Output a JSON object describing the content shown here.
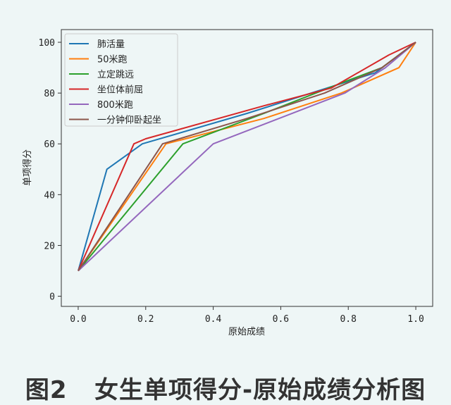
{
  "caption": "图2   女生单项得分-原始成绩分析图",
  "chart_data": {
    "type": "line",
    "xlabel": "原始成绩",
    "ylabel": "单项得分",
    "xlim": [
      -0.05,
      1.05
    ],
    "ylim": [
      -4,
      105
    ],
    "xticks": [
      0.0,
      0.2,
      0.4,
      0.6,
      0.8,
      1.0
    ],
    "xtick_labels": [
      "0.0",
      "0.2",
      "0.4",
      "0.6",
      "0.8",
      "1.0"
    ],
    "yticks": [
      0,
      20,
      40,
      60,
      80,
      100
    ],
    "ytick_labels": [
      "0",
      "20",
      "40",
      "60",
      "80",
      "100"
    ],
    "grid": false,
    "legend_position": "top-left",
    "series": [
      {
        "name": "肺活量",
        "color": "#1f77b4",
        "x": [
          0.0,
          0.085,
          0.19,
          0.5,
          0.88,
          1.0
        ],
        "y": [
          10,
          50,
          60,
          72,
          88,
          100
        ]
      },
      {
        "name": "50米跑",
        "color": "#ff7f0e",
        "x": [
          0.0,
          0.26,
          0.55,
          0.78,
          0.95,
          1.0
        ],
        "y": [
          10,
          60,
          70,
          80,
          90,
          100
        ]
      },
      {
        "name": "立定跳远",
        "color": "#2ca02c",
        "x": [
          0.0,
          0.31,
          0.55,
          0.8,
          0.9,
          1.0
        ],
        "y": [
          10,
          60,
          72,
          85,
          90,
          100
        ]
      },
      {
        "name": "坐位体前屈",
        "color": "#d62728",
        "x": [
          0.0,
          0.165,
          0.2,
          0.55,
          0.75,
          0.92,
          1.0
        ],
        "y": [
          10,
          60,
          62,
          75,
          82,
          95,
          100
        ]
      },
      {
        "name": "800米跑",
        "color": "#9467bd",
        "x": [
          0.0,
          0.4,
          0.79,
          0.91,
          1.0
        ],
        "y": [
          10,
          60,
          80,
          90,
          100
        ]
      },
      {
        "name": "一分钟仰卧起坐",
        "color": "#8c564b",
        "x": [
          0.0,
          0.25,
          0.5,
          0.73,
          0.9,
          1.0
        ],
        "y": [
          10,
          60,
          70,
          80,
          90,
          100
        ]
      }
    ]
  }
}
